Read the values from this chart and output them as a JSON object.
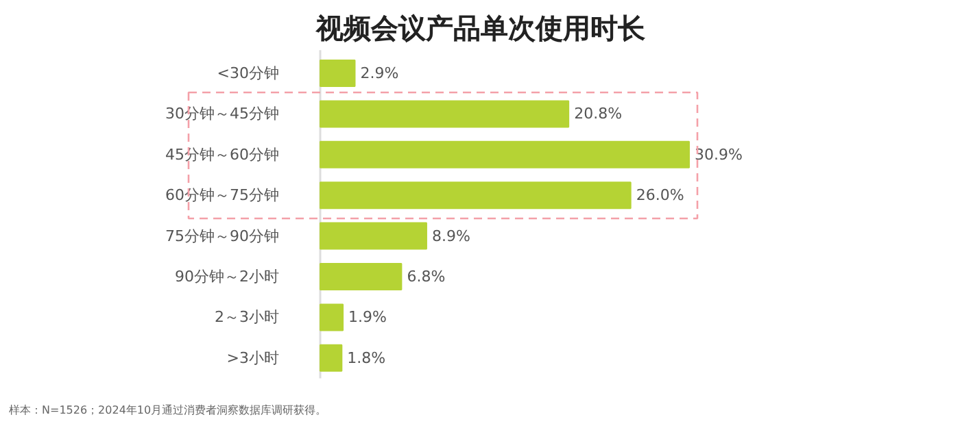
{
  "chart_data": {
    "type": "bar",
    "orientation": "horizontal",
    "title": "视频会议产品单次使用时长",
    "categories": [
      "<30分钟",
      "30分钟～45分钟",
      "45分钟～60分钟",
      "60分钟～75分钟",
      "75分钟～90分钟",
      "90分钟～2小时",
      "2～3小时",
      ">3小时"
    ],
    "values": [
      2.9,
      20.8,
      30.9,
      26.0,
      8.9,
      6.8,
      1.9,
      1.8
    ],
    "value_labels": [
      "2.9%",
      "20.8%",
      "30.9%",
      "26.0%",
      "8.9%",
      "6.8%",
      "1.9%",
      "1.8%"
    ],
    "color": "#b5d334",
    "annotations": [
      "样本：N=1526；2024年10月通过消费者洞察数据库调研获得。"
    ],
    "grid": false
  }
}
